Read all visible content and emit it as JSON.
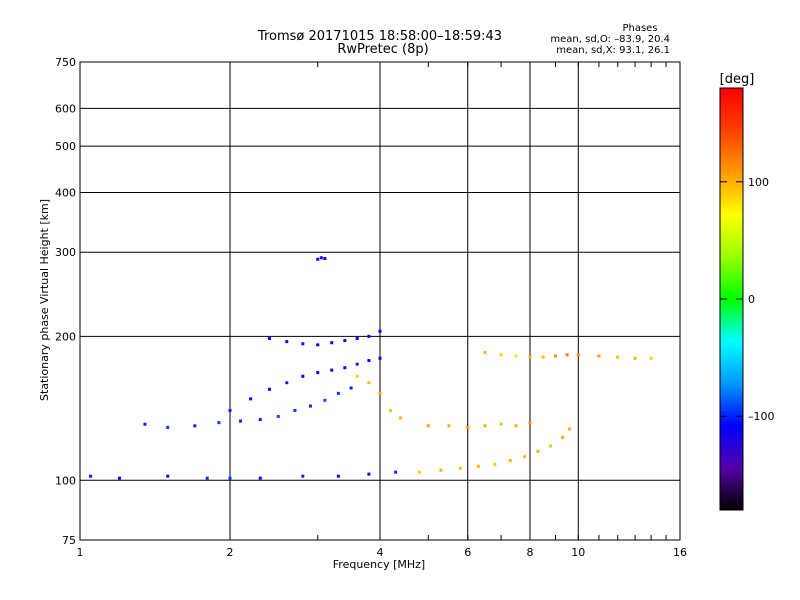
{
  "title": "Tromsø 20171015 18:58:00–18:59:43",
  "subtitle": "RwPretec (8p)",
  "stats": {
    "heading": "Phases",
    "line_o": "mean, sd,O: –83.9, 20.4",
    "line_x": "mean, sd,X:  93.1, 26.1"
  },
  "colorbar": {
    "label": "[deg]",
    "ticks": [
      {
        "value": 100,
        "label": "100"
      },
      {
        "value": 0,
        "label": "0"
      },
      {
        "value": -100,
        "label": "–100"
      }
    ],
    "range": [
      -180,
      180
    ]
  },
  "chart_data": {
    "type": "scatter",
    "title": "Tromsø 20171015 18:58:00–18:59:43",
    "subtitle": "RwPretec (8p)",
    "xlabel": "Frequency [MHz]",
    "ylabel": "Stationary phase Virtual Height [km]",
    "xscale": "log",
    "yscale": "log",
    "xlim": [
      1,
      16
    ],
    "ylim": [
      75,
      750
    ],
    "xticks": [
      1,
      2,
      4,
      6,
      8,
      10,
      16
    ],
    "xtick_labels": [
      "1",
      "2",
      "4",
      "6",
      "8",
      "10",
      "16"
    ],
    "yticks": [
      75,
      100,
      200,
      300,
      400,
      500,
      600,
      750
    ],
    "ytick_labels": [
      "75",
      "100",
      "200",
      "300",
      "400",
      "500",
      "600",
      "750"
    ],
    "grid": true,
    "colormap": "rainbow",
    "color_value": "phase [deg]",
    "traces": [
      {
        "x": [
          1.05,
          1.2,
          1.5,
          1.8,
          2.0,
          2.3,
          2.8,
          3.3,
          3.8,
          4.3,
          4.8,
          5.3,
          5.8,
          6.3,
          6.8,
          7.3,
          7.8,
          8.3,
          8.8,
          9.3,
          9.6
        ],
        "y": [
          102,
          101,
          102,
          101,
          101,
          101,
          102,
          102,
          103,
          104,
          104,
          105,
          106,
          107,
          108,
          110,
          112,
          115,
          118,
          123,
          128
        ],
        "c": [
          -100,
          -110,
          -105,
          -100,
          -95,
          -105,
          -100,
          -105,
          -110,
          -100,
          90,
          100,
          95,
          100,
          90,
          100,
          95,
          100,
          95,
          105,
          100
        ]
      },
      {
        "x": [
          1.35,
          1.5,
          1.7,
          1.9,
          2.1,
          2.3,
          2.5,
          2.7,
          2.9,
          3.1,
          3.3,
          3.5
        ],
        "y": [
          131,
          129,
          130,
          132,
          133,
          134,
          136,
          140,
          143,
          147,
          152,
          156
        ],
        "c": [
          -100,
          -95,
          -100,
          -95,
          -100,
          -100,
          -90,
          -95,
          -100,
          -90,
          -95,
          -100
        ]
      },
      {
        "x": [
          2.0,
          2.2,
          2.4,
          2.6,
          2.8,
          3.0,
          3.2,
          3.4,
          3.6,
          3.8,
          4.0
        ],
        "y": [
          140,
          148,
          155,
          160,
          165,
          168,
          170,
          172,
          175,
          178,
          180
        ],
        "c": [
          -100,
          -105,
          -110,
          -100,
          -110,
          -105,
          -115,
          -110,
          -100,
          -115,
          -110
        ]
      },
      {
        "x": [
          2.4,
          2.6,
          2.8,
          3.0,
          3.2,
          3.4,
          3.6,
          3.8,
          4.0
        ],
        "y": [
          198,
          195,
          193,
          192,
          194,
          196,
          198,
          200,
          205
        ],
        "c": [
          -110,
          -115,
          -120,
          -110,
          -115,
          -120,
          -110,
          -115,
          -110
        ]
      },
      {
        "x": [
          3.6,
          3.8,
          4.0,
          4.2,
          4.4,
          5.0,
          5.5,
          6.0,
          6.5,
          7.0,
          7.5,
          8.0
        ],
        "y": [
          165,
          160,
          152,
          140,
          135,
          130,
          130,
          129,
          130,
          131,
          130,
          132
        ],
        "c": [
          90,
          95,
          100,
          95,
          100,
          105,
          100,
          110,
          100,
          95,
          100,
          110
        ]
      },
      {
        "x": [
          6.5,
          7.0,
          7.5,
          8.0,
          8.5,
          9.0,
          9.5,
          10.0,
          11.0,
          12.0,
          13.0,
          14.0
        ],
        "y": [
          185,
          183,
          182,
          181,
          181,
          182,
          183,
          183,
          182,
          181,
          180,
          180
        ],
        "c": [
          100,
          90,
          80,
          100,
          95,
          110,
          120,
          115,
          105,
          95,
          100,
          90
        ]
      },
      {
        "x": [
          3.0,
          3.05,
          3.1
        ],
        "y": [
          290,
          292,
          291
        ],
        "c": [
          -120,
          -110,
          -115
        ]
      }
    ]
  }
}
